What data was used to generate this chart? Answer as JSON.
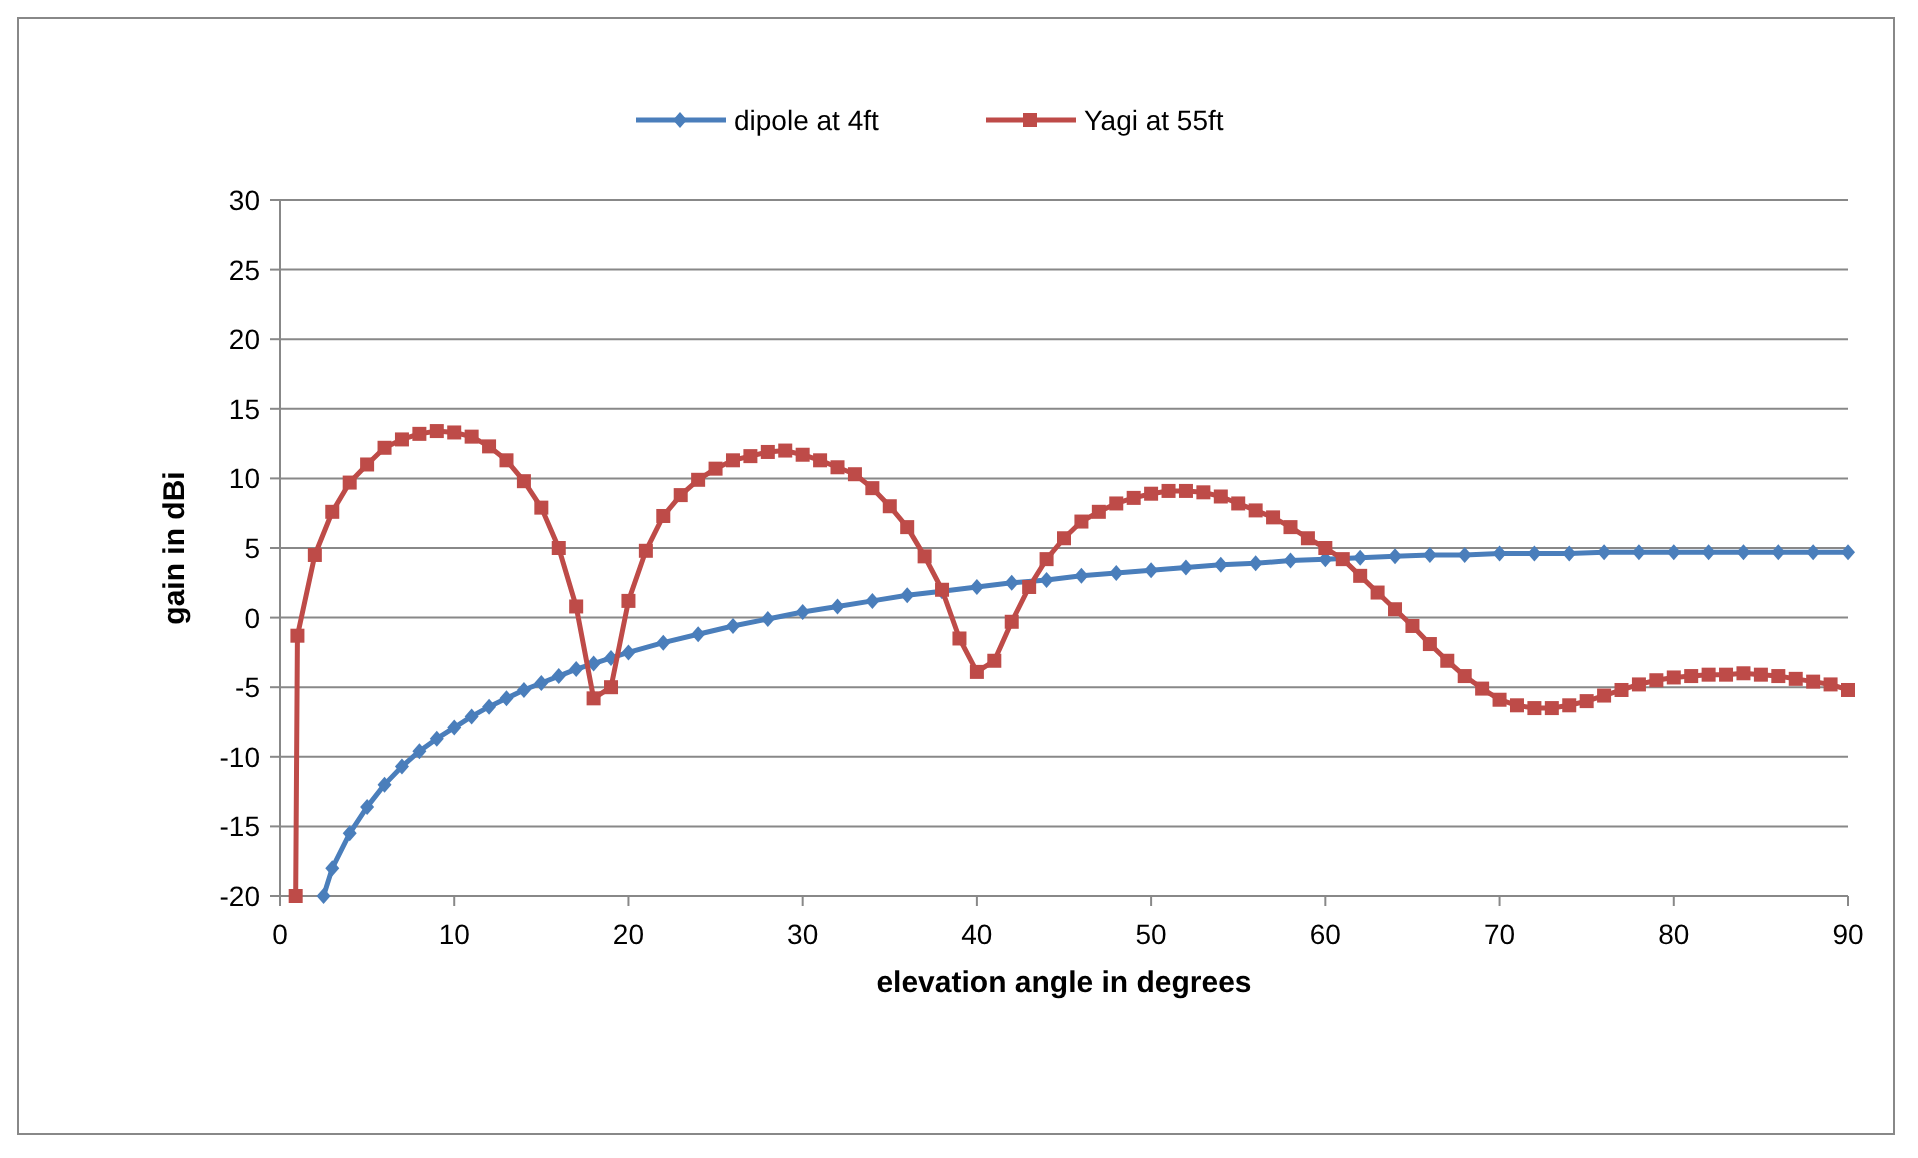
{
  "chart_data": {
    "type": "line",
    "xlabel": "elevation angle in degrees",
    "ylabel": "gain in dBi",
    "xlim": [
      0,
      90
    ],
    "xticks": [
      0,
      10,
      20,
      30,
      40,
      50,
      60,
      70,
      80,
      90
    ],
    "ylim": [
      -20,
      30
    ],
    "yticks": [
      -20,
      -15,
      -10,
      -5,
      0,
      5,
      10,
      15,
      20,
      25,
      30
    ],
    "grid": "y",
    "legend": "top",
    "series": [
      {
        "name": "dipole at 4ft",
        "color": "#4a7ebb",
        "marker": "diamond",
        "x": [
          2.5,
          3,
          4,
          5,
          6,
          7,
          8,
          9,
          10,
          11,
          12,
          13,
          14,
          15,
          16,
          17,
          18,
          19,
          20,
          22,
          24,
          26,
          28,
          30,
          32,
          34,
          36,
          38,
          40,
          42,
          44,
          46,
          48,
          50,
          52,
          54,
          56,
          58,
          60,
          62,
          64,
          66,
          68,
          70,
          72,
          74,
          76,
          78,
          80,
          82,
          84,
          86,
          88,
          90
        ],
        "values": [
          -20,
          -18,
          -15.5,
          -13.6,
          -12,
          -10.7,
          -9.6,
          -8.7,
          -7.9,
          -7.1,
          -6.4,
          -5.8,
          -5.2,
          -4.7,
          -4.2,
          -3.7,
          -3.3,
          -2.9,
          -2.5,
          -1.8,
          -1.2,
          -0.6,
          -0.1,
          0.4,
          0.8,
          1.2,
          1.6,
          1.9,
          2.2,
          2.5,
          2.7,
          3,
          3.2,
          3.4,
          3.6,
          3.8,
          3.9,
          4.1,
          4.2,
          4.3,
          4.4,
          4.5,
          4.5,
          4.6,
          4.6,
          4.6,
          4.7,
          4.7,
          4.7,
          4.7,
          4.7,
          4.7,
          4.7,
          4.7
        ]
      },
      {
        "name": "Yagi at 55ft",
        "color": "#be4b48",
        "marker": "square",
        "x": [
          0.9,
          1,
          2,
          3,
          4,
          5,
          6,
          7,
          8,
          9,
          10,
          11,
          12,
          13,
          14,
          15,
          16,
          17,
          18,
          19,
          20,
          21,
          22,
          23,
          24,
          25,
          26,
          27,
          28,
          29,
          30,
          31,
          32,
          33,
          34,
          35,
          36,
          37,
          38,
          39,
          40,
          41,
          42,
          43,
          44,
          45,
          46,
          47,
          48,
          49,
          50,
          51,
          52,
          53,
          54,
          55,
          56,
          57,
          58,
          59,
          60,
          61,
          62,
          63,
          64,
          65,
          66,
          67,
          68,
          69,
          70,
          71,
          72,
          73,
          74,
          75,
          76,
          77,
          78,
          79,
          80,
          81,
          82,
          83,
          84,
          85,
          86,
          87,
          88,
          89,
          90
        ],
        "values": [
          -20,
          -1.3,
          4.5,
          7.6,
          9.7,
          11,
          12.2,
          12.8,
          13.2,
          13.4,
          13.3,
          13,
          12.3,
          11.3,
          9.8,
          7.9,
          5,
          0.8,
          -5.8,
          -5,
          1.2,
          4.8,
          7.3,
          8.8,
          9.9,
          10.7,
          11.3,
          11.6,
          11.9,
          12,
          11.7,
          11.3,
          10.8,
          10.3,
          9.3,
          8,
          6.5,
          4.4,
          2,
          -1.5,
          -3.9,
          -3.1,
          -0.3,
          2.2,
          4.2,
          5.7,
          6.9,
          7.6,
          8.2,
          8.6,
          8.9,
          9.1,
          9.1,
          9,
          8.7,
          8.2,
          7.7,
          7.2,
          6.5,
          5.7,
          5,
          4.2,
          3,
          1.8,
          0.6,
          -0.6,
          -1.9,
          -3.1,
          -4.2,
          -5.1,
          -5.9,
          -6.3,
          -6.5,
          -6.5,
          -6.3,
          -6,
          -5.6,
          -5.2,
          -4.8,
          -4.5,
          -4.3,
          -4.2,
          -4.1,
          -4.1,
          -4,
          -4.1,
          -4.2,
          -4.4,
          -4.6,
          -4.8,
          -5.2
        ]
      }
    ]
  }
}
